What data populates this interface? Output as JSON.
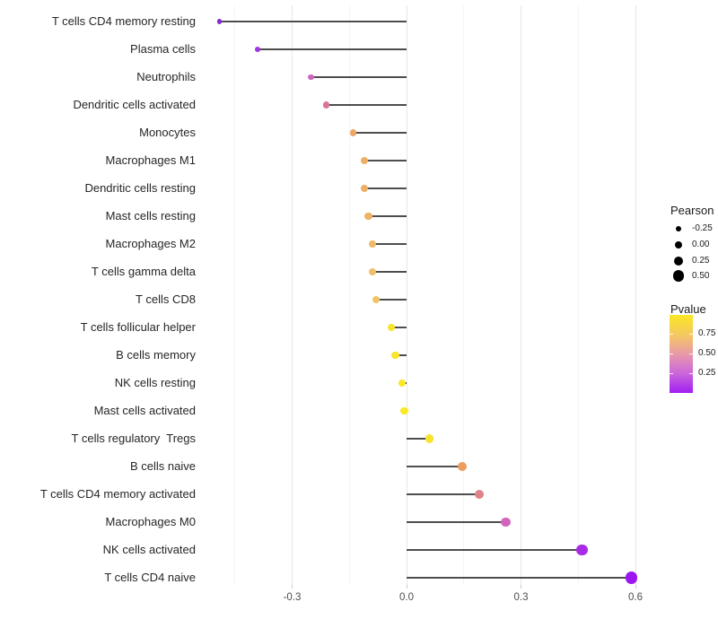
{
  "chart_data": {
    "type": "scatter",
    "variant": "lollipop",
    "title": "",
    "xlabel": "",
    "ylabel": "",
    "xlim": [
      -0.52,
      0.62
    ],
    "grid": "vertical-only",
    "baseline": 0,
    "x_major_ticks": [
      -0.3,
      0.0,
      0.3,
      0.6
    ],
    "x_tick_labels": [
      "-0.3",
      "0.0",
      "0.3",
      "0.6"
    ],
    "x_minor_ticks": [
      -0.45,
      -0.15,
      0.15,
      0.45
    ],
    "points": [
      {
        "label": "T cells CD4 memory resting",
        "pearson": -0.49,
        "color": "#8727D3"
      },
      {
        "label": "Plasma cells",
        "pearson": -0.39,
        "color": "#A136E3"
      },
      {
        "label": "Neutrophils",
        "pearson": -0.25,
        "color": "#CD64BE"
      },
      {
        "label": "Dendritic cells activated",
        "pearson": -0.21,
        "color": "#D9749B"
      },
      {
        "label": "Monocytes",
        "pearson": -0.14,
        "color": "#EDA765"
      },
      {
        "label": "Macrophages M1",
        "pearson": -0.11,
        "color": "#ECAF63"
      },
      {
        "label": "Dendritic cells resting",
        "pearson": -0.11,
        "color": "#ECAF63"
      },
      {
        "label": "Mast cells resting",
        "pearson": -0.1,
        "color": "#EDB365"
      },
      {
        "label": "Macrophages M2",
        "pearson": -0.09,
        "color": "#EFBA67"
      },
      {
        "label": "T cells gamma delta",
        "pearson": -0.09,
        "color": "#F0BE68"
      },
      {
        "label": "T cells CD8",
        "pearson": -0.08,
        "color": "#F1C46A"
      },
      {
        "label": "T cells follicular helper",
        "pearson": -0.04,
        "color": "#F8E32E"
      },
      {
        "label": "B cells memory",
        "pearson": -0.03,
        "color": "#F9E52B"
      },
      {
        "label": "NK cells resting",
        "pearson": -0.012,
        "color": "#FAE826"
      },
      {
        "label": "Mast cells activated",
        "pearson": -0.006,
        "color": "#FAE926"
      },
      {
        "label": "T cells regulatory  Tregs",
        "pearson": 0.06,
        "color": "#F8E22E"
      },
      {
        "label": "B cells naive",
        "pearson": 0.145,
        "color": "#EC9E5E"
      },
      {
        "label": "T cells CD4 memory activated",
        "pearson": 0.19,
        "color": "#DE8389"
      },
      {
        "label": "Macrophages M0",
        "pearson": 0.26,
        "color": "#D165BD"
      },
      {
        "label": "NK cells activated",
        "pearson": 0.46,
        "color": "#A82BE8"
      },
      {
        "label": "T cells CD4 naive",
        "pearson": 0.59,
        "color": "#9D16F2"
      }
    ],
    "legend_size": {
      "title": "Pearson",
      "entries": [
        {
          "label": "-0.25",
          "value": -0.25
        },
        {
          "label": "0.00",
          "value": 0.0
        },
        {
          "label": "0.25",
          "value": 0.25
        },
        {
          "label": "0.50",
          "value": 0.5
        }
      ],
      "dot_color": "#000000"
    },
    "legend_color": {
      "title": "Pvalue",
      "ticks": [
        "0.75",
        "0.50",
        "0.25"
      ],
      "gradient_top_to_bottom": [
        "#FBE723",
        "#F3C567",
        "#E795AE",
        "#C964DC",
        "#A21EF2"
      ],
      "gradient_stops_pct": [
        0,
        28,
        52,
        76,
        100
      ]
    },
    "colors": {
      "stem": "#4D4D4D",
      "grid_major": "#E7E7E7",
      "grid_minor": "#F4F4F4",
      "axis_text": "#4D4D4D",
      "background": "#FFFFFF"
    }
  }
}
